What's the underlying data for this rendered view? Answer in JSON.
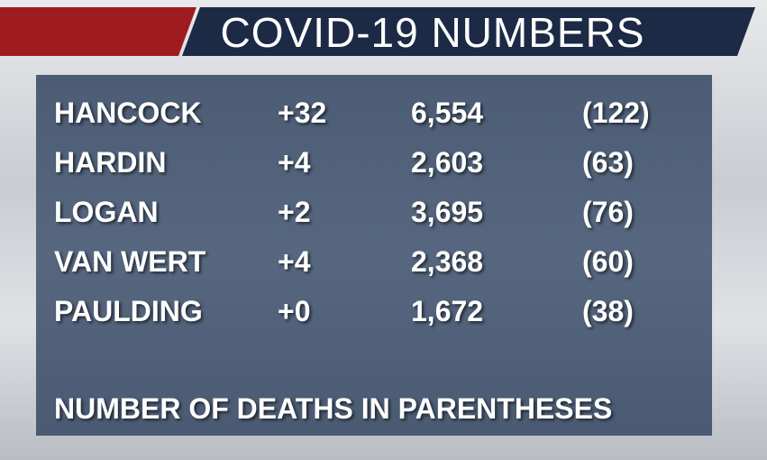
{
  "header": {
    "title": "COVID-19 NUMBERS"
  },
  "table": {
    "rows": [
      [
        "HANCOCK",
        "+32",
        "6,554",
        "(122)"
      ],
      [
        "HARDIN",
        "+4",
        "2,603",
        "(63)"
      ],
      [
        "LOGAN",
        "+2",
        "3,695",
        "(76)"
      ],
      [
        "VAN WERT",
        "+4",
        "2,368",
        "(60)"
      ],
      [
        "PAULDING",
        "+0",
        "1,672",
        "(38)"
      ]
    ]
  },
  "footer": {
    "note": "NUMBER OF DEATHS IN PARENTHESES"
  }
}
